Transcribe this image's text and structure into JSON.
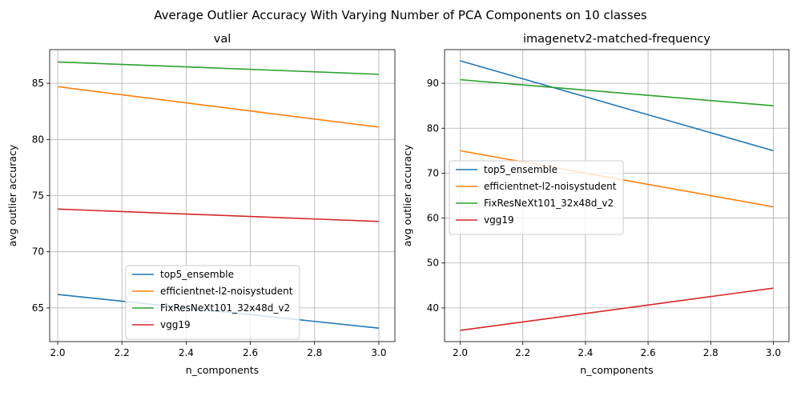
{
  "figure": {
    "title": "Average Outlier Accuracy With Varying Number of PCA Components on 10 classes"
  },
  "chart_data": [
    {
      "type": "line",
      "title": "val",
      "xlabel": "n_components",
      "ylabel": "avg outlier accuracy",
      "xlim": [
        1.975,
        3.05
      ],
      "ylim": [
        62.0,
        88.0
      ],
      "xticks": [
        2.0,
        2.2,
        2.4,
        2.6,
        2.8,
        3.0
      ],
      "xtick_labels": [
        "2.0",
        "2.2",
        "2.4",
        "2.6",
        "2.8",
        "3.0"
      ],
      "yticks": [
        65,
        70,
        75,
        80,
        85
      ],
      "ytick_labels": [
        "65",
        "70",
        "75",
        "80",
        "85"
      ],
      "grid": true,
      "legend_position": "lower-center",
      "x": [
        2.0,
        3.0
      ],
      "series": [
        {
          "name": "top5_ensemble",
          "color": "#1f77b4",
          "values": [
            66.2,
            63.2
          ]
        },
        {
          "name": "efficientnet-l2-noisystudent",
          "color": "#ff7f0e",
          "values": [
            84.7,
            81.1
          ]
        },
        {
          "name": "FixResNeXt101_32x48d_v2",
          "color": "#2ca02c",
          "values": [
            86.9,
            85.8
          ]
        },
        {
          "name": "vgg19",
          "color": "#d62728",
          "values": [
            73.8,
            72.7
          ]
        }
      ]
    },
    {
      "type": "line",
      "title": "imagenetv2-matched-frequency",
      "xlabel": "n_components",
      "ylabel": "avg outlier accuracy",
      "xlim": [
        1.95,
        3.05
      ],
      "ylim": [
        32.5,
        97.5
      ],
      "xticks": [
        2.0,
        2.2,
        2.4,
        2.6,
        2.8,
        3.0
      ],
      "xtick_labels": [
        "2.0",
        "2.2",
        "2.4",
        "2.6",
        "2.8",
        "3.0"
      ],
      "yticks": [
        40,
        50,
        60,
        70,
        80,
        90
      ],
      "ytick_labels": [
        "40",
        "50",
        "60",
        "70",
        "80",
        "90"
      ],
      "grid": true,
      "legend_position": "center-left",
      "x": [
        2.0,
        3.0
      ],
      "series": [
        {
          "name": "top5_ensemble",
          "color": "#1f77b4",
          "values": [
            95.0,
            75.0
          ]
        },
        {
          "name": "efficientnet-l2-noisystudent",
          "color": "#ff7f0e",
          "values": [
            75.0,
            62.5
          ]
        },
        {
          "name": "FixResNeXt101_32x48d_v2",
          "color": "#2ca02c",
          "values": [
            90.8,
            85.0
          ]
        },
        {
          "name": "vgg19",
          "color": "#d62728",
          "values": [
            35.0,
            44.4
          ]
        }
      ]
    }
  ]
}
